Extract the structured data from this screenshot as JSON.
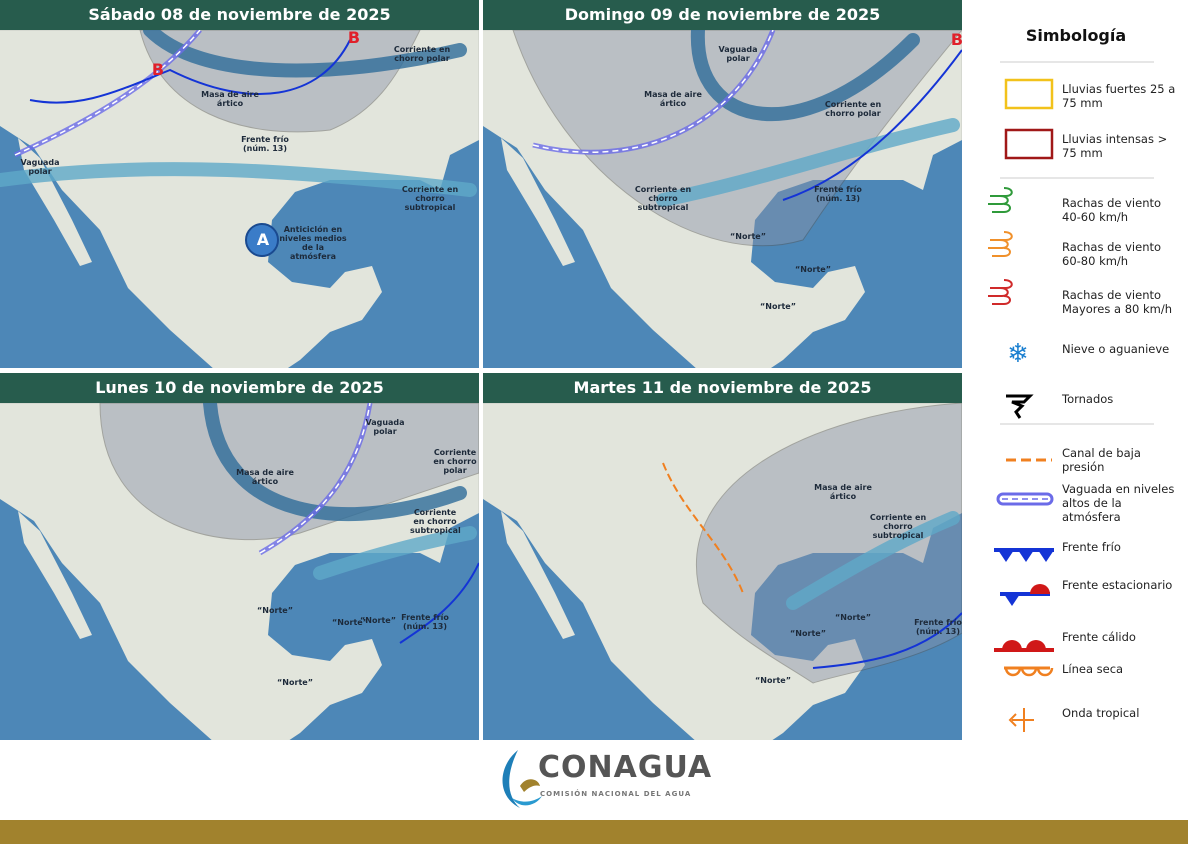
{
  "panels": [
    {
      "title": "Sábado 08 de noviembre de 2025",
      "labels": [
        "Corriente en chorro polar",
        "Masa de aire ártico",
        "Frente frío (núm. 13)",
        "Vaguada polar",
        "Corriente en chorro subtropical",
        "Anticiclón en niveles medios de la atmósfera",
        "A",
        "B",
        "B"
      ]
    },
    {
      "title": "Domingo 09 de noviembre de 2025",
      "labels": [
        "Vaguada polar",
        "Masa de aire ártico",
        "Corriente en chorro polar",
        "Corriente en chorro subtropical",
        "Frente frío (núm. 13)",
        "“Norte”",
        "“Norte”",
        "“Norte”",
        "B"
      ]
    },
    {
      "title": "Lunes 10 de noviembre de 2025",
      "labels": [
        "Vaguada polar",
        "Masa de aire ártico",
        "Corriente en chorro polar",
        "Corriente en chorro subtropical",
        "Frente frío (núm. 13)",
        "“Norte”",
        "“Norte”",
        "“Norte”",
        "“Norte”"
      ]
    },
    {
      "title": "Martes 11 de noviembre de 2025",
      "labels": [
        "Masa de aire ártico",
        "Corriente en chorro subtropical",
        "Frente frío (núm. 13)",
        "“Norte”",
        "“Norte”",
        "“Norte”"
      ]
    }
  ],
  "legend": {
    "title": "Simbología",
    "items": [
      "Lluvias fuertes 25 a 75 mm",
      "Lluvias intensas > 75 mm",
      "Rachas de viento 40-60 km/h",
      "Rachas de viento 60-80 km/h",
      "Rachas de viento Mayores a 80 km/h",
      "Nieve o aguanieve",
      "Tornados",
      "Canal de baja presión",
      "Vaguada en niveles altos de la atmósfera",
      "Frente frío",
      "Frente estacionario",
      "Frente cálido",
      "Línea seca",
      "Onda tropical"
    ]
  },
  "footer": {
    "brand": "CONAGUA",
    "subtitle": "COMISIÓN NACIONAL DEL AGUA"
  }
}
